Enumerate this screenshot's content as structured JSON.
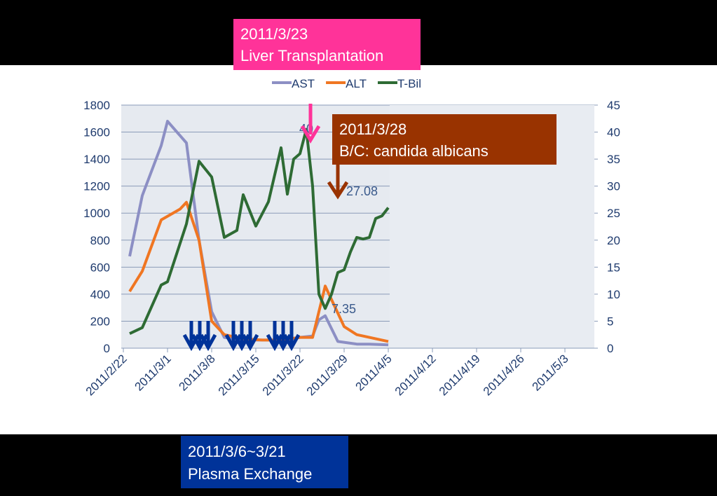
{
  "chart_data": {
    "type": "line",
    "xticks": [
      "2011/2/22",
      "2011/3/1",
      "2011/3/8",
      "2011/3/15",
      "2011/3/22",
      "2011/3/29",
      "2011/4/5",
      "2011/4/12",
      "2011/4/19",
      "2011/4/26",
      "2011/5/3"
    ],
    "xlim": [
      "2011/2/22",
      "2011/5/3"
    ],
    "ylim": [
      0,
      1800
    ],
    "yticks": [
      0,
      200,
      400,
      600,
      800,
      1000,
      1200,
      1400,
      1600,
      1800
    ],
    "y2lim": [
      0,
      45
    ],
    "y2ticks": [
      0,
      5,
      10,
      15,
      20,
      25,
      30,
      35,
      40,
      45
    ],
    "grid": true,
    "series": [
      {
        "name": "AST",
        "color": "#8c8fc4",
        "x": [
          "2011/2/23",
          "2011/2/25",
          "2011/2/28",
          "2011/3/1",
          "2011/3/4",
          "2011/3/6",
          "2011/3/8",
          "2011/3/10",
          "2011/3/13",
          "2011/3/16",
          "2011/3/19",
          "2011/3/22",
          "2011/3/24",
          "2011/3/25",
          "2011/3/26",
          "2011/3/28",
          "2011/3/31",
          "2011/4/2",
          "2011/4/5"
        ],
        "values": [
          680,
          1130,
          1500,
          1680,
          1520,
          800,
          270,
          80,
          60,
          60,
          60,
          80,
          90,
          210,
          240,
          50,
          30,
          30,
          25
        ]
      },
      {
        "name": "ALT",
        "color": "#f07622",
        "x": [
          "2011/2/23",
          "2011/2/25",
          "2011/2/28",
          "2011/3/3",
          "2011/3/4",
          "2011/3/6",
          "2011/3/8",
          "2011/3/10",
          "2011/3/13",
          "2011/3/16",
          "2011/3/19",
          "2011/3/22",
          "2011/3/24",
          "2011/3/26",
          "2011/3/27",
          "2011/3/29",
          "2011/3/31",
          "2011/4/2",
          "2011/4/5"
        ],
        "values": [
          420,
          570,
          950,
          1030,
          1080,
          800,
          200,
          100,
          70,
          60,
          60,
          80,
          80,
          460,
          360,
          160,
          100,
          80,
          50
        ]
      },
      {
        "name": "T-Bil",
        "color": "#2e6b34",
        "axis": "y2",
        "x": [
          "2011/2/23",
          "2011/2/25",
          "2011/2/28",
          "2011/3/1",
          "2011/3/4",
          "2011/3/6",
          "2011/3/8",
          "2011/3/10",
          "2011/3/12",
          "2011/3/13",
          "2011/3/15",
          "2011/3/17",
          "2011/3/19",
          "2011/3/20",
          "2011/3/21",
          "2011/3/22",
          "2011/3/23",
          "2011/3/24",
          "2011/3/25",
          "2011/3/26",
          "2011/3/27",
          "2011/3/28",
          "2011/3/29",
          "2011/3/30",
          "2011/3/31",
          "2011/4/1",
          "2011/4/2",
          "2011/4/3",
          "2011/4/4",
          "2011/4/5"
        ],
        "values": [
          2.7,
          3.8,
          11.7,
          12.3,
          23,
          34.6,
          31.7,
          20.5,
          21.8,
          28.4,
          22.6,
          27.1,
          37.1,
          28.5,
          35,
          36,
          40.5,
          30,
          10,
          7.35,
          10,
          14,
          14.5,
          17.8,
          20.5,
          20.2,
          20.5,
          24,
          24.5,
          26
        ]
      }
    ],
    "annotations": [
      "40.",
      "27.08",
      "7.35"
    ],
    "callouts": [
      {
        "date": "2011/3/23",
        "text": "Liver Transplantation"
      },
      {
        "date": "2011/3/28",
        "text": "B/C: candida albicans"
      },
      {
        "date": "2011/3/6~3/21",
        "text": "Plasma Exchange"
      }
    ]
  }
}
